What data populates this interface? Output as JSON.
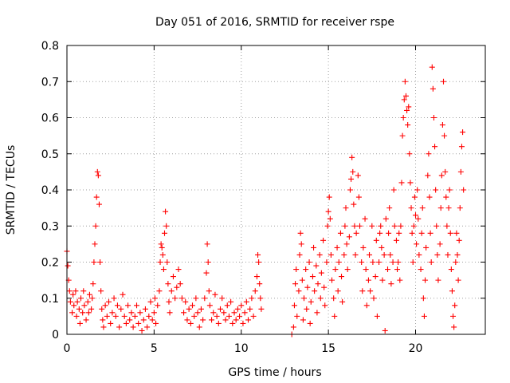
{
  "chart_data": {
    "type": "scatter",
    "title": "Day 051 of 2016, SRMTID for receiver rspe",
    "xlabel": "GPS time / hours",
    "ylabel": "SRMTID / TECUs",
    "xlim": [
      0,
      24
    ],
    "ylim": [
      0,
      0.8
    ],
    "xticks": [
      0,
      5,
      10,
      15,
      20
    ],
    "yticks": [
      0,
      0.1,
      0.2,
      0.3,
      0.4,
      0.5,
      0.6,
      0.7,
      0.8
    ],
    "xtick_labels": [
      "0",
      "5",
      "10",
      "15",
      "20"
    ],
    "ytick_labels": [
      "0",
      "0.1",
      "0.2",
      "0.3",
      "0.4",
      "0.5",
      "0.6",
      "0.7",
      "0.8"
    ],
    "grid": true,
    "marker": "+",
    "color": "#ff0000",
    "series": [
      {
        "name": "rspe",
        "points": [
          [
            0.0,
            0.23
          ],
          [
            0.05,
            0.19
          ],
          [
            0.1,
            0.15
          ],
          [
            0.15,
            0.12
          ],
          [
            0.2,
            0.09
          ],
          [
            0.3,
            0.06
          ],
          [
            0.35,
            0.11
          ],
          [
            0.4,
            0.08
          ],
          [
            0.5,
            0.12
          ],
          [
            0.55,
            0.05
          ],
          [
            0.6,
            0.09
          ],
          [
            0.7,
            0.07
          ],
          [
            0.75,
            0.03
          ],
          [
            0.8,
            0.1
          ],
          [
            0.9,
            0.06
          ],
          [
            0.95,
            0.12
          ],
          [
            1.0,
            0.08
          ],
          [
            1.1,
            0.04
          ],
          [
            1.2,
            0.09
          ],
          [
            1.25,
            0.06
          ],
          [
            1.3,
            0.11
          ],
          [
            1.4,
            0.07
          ],
          [
            1.45,
            0.1
          ],
          [
            1.5,
            0.14
          ],
          [
            1.55,
            0.2
          ],
          [
            1.6,
            0.25
          ],
          [
            1.65,
            0.3
          ],
          [
            1.7,
            0.38
          ],
          [
            1.75,
            0.45
          ],
          [
            1.8,
            0.44
          ],
          [
            1.85,
            0.36
          ],
          [
            1.9,
            0.2
          ],
          [
            1.95,
            0.12
          ],
          [
            2.0,
            0.07
          ],
          [
            2.05,
            0.04
          ],
          [
            2.1,
            0.02
          ],
          [
            2.2,
            0.08
          ],
          [
            2.3,
            0.05
          ],
          [
            2.4,
            0.09
          ],
          [
            2.5,
            0.03
          ],
          [
            2.6,
            0.06
          ],
          [
            2.7,
            0.1
          ],
          [
            2.8,
            0.05
          ],
          [
            2.9,
            0.08
          ],
          [
            3.0,
            0.02
          ],
          [
            3.1,
            0.07
          ],
          [
            3.2,
            0.11
          ],
          [
            3.3,
            0.05
          ],
          [
            3.4,
            0.03
          ],
          [
            3.5,
            0.08
          ],
          [
            3.6,
            0.04
          ],
          [
            3.7,
            0.06
          ],
          [
            3.8,
            0.02
          ],
          [
            3.9,
            0.05
          ],
          [
            4.0,
            0.08
          ],
          [
            4.1,
            0.03
          ],
          [
            4.2,
            0.06
          ],
          [
            4.3,
            0.01
          ],
          [
            4.4,
            0.04
          ],
          [
            4.5,
            0.07
          ],
          [
            4.6,
            0.02
          ],
          [
            4.7,
            0.05
          ],
          [
            4.8,
            0.09
          ],
          [
            4.9,
            0.04
          ],
          [
            5.0,
            0.06
          ],
          [
            5.05,
            0.1
          ],
          [
            5.1,
            0.03
          ],
          [
            5.2,
            0.08
          ],
          [
            5.3,
            0.12
          ],
          [
            5.35,
            0.2
          ],
          [
            5.4,
            0.25
          ],
          [
            5.45,
            0.24
          ],
          [
            5.5,
            0.22
          ],
          [
            5.55,
            0.18
          ],
          [
            5.6,
            0.28
          ],
          [
            5.65,
            0.34
          ],
          [
            5.7,
            0.3
          ],
          [
            5.75,
            0.2
          ],
          [
            5.8,
            0.14
          ],
          [
            5.85,
            0.09
          ],
          [
            5.9,
            0.06
          ],
          [
            6.0,
            0.12
          ],
          [
            6.1,
            0.16
          ],
          [
            6.2,
            0.1
          ],
          [
            6.3,
            0.13
          ],
          [
            6.4,
            0.18
          ],
          [
            6.5,
            0.14
          ],
          [
            6.6,
            0.1
          ],
          [
            6.7,
            0.06
          ],
          [
            6.8,
            0.09
          ],
          [
            6.9,
            0.04
          ],
          [
            7.0,
            0.07
          ],
          [
            7.1,
            0.03
          ],
          [
            7.2,
            0.08
          ],
          [
            7.3,
            0.05
          ],
          [
            7.4,
            0.1
          ],
          [
            7.5,
            0.06
          ],
          [
            7.6,
            0.02
          ],
          [
            7.7,
            0.07
          ],
          [
            7.8,
            0.04
          ],
          [
            7.9,
            0.1
          ],
          [
            8.0,
            0.17
          ],
          [
            8.05,
            0.25
          ],
          [
            8.1,
            0.2
          ],
          [
            8.15,
            0.12
          ],
          [
            8.2,
            0.08
          ],
          [
            8.3,
            0.04
          ],
          [
            8.4,
            0.06
          ],
          [
            8.5,
            0.11
          ],
          [
            8.6,
            0.05
          ],
          [
            8.7,
            0.03
          ],
          [
            8.8,
            0.07
          ],
          [
            8.9,
            0.1
          ],
          [
            9.0,
            0.06
          ],
          [
            9.1,
            0.04
          ],
          [
            9.2,
            0.08
          ],
          [
            9.3,
            0.05
          ],
          [
            9.4,
            0.09
          ],
          [
            9.5,
            0.03
          ],
          [
            9.6,
            0.06
          ],
          [
            9.7,
            0.04
          ],
          [
            9.8,
            0.07
          ],
          [
            9.9,
            0.05
          ],
          [
            10.0,
            0.08
          ],
          [
            10.1,
            0.03
          ],
          [
            10.2,
            0.06
          ],
          [
            10.3,
            0.09
          ],
          [
            10.4,
            0.04
          ],
          [
            10.5,
            0.07
          ],
          [
            10.6,
            0.1
          ],
          [
            10.7,
            0.05
          ],
          [
            10.8,
            0.12
          ],
          [
            10.9,
            0.16
          ],
          [
            10.95,
            0.22
          ],
          [
            11.0,
            0.2
          ],
          [
            11.05,
            0.14
          ],
          [
            11.1,
            0.1
          ],
          [
            11.15,
            0.07
          ],
          [
            12.9,
            0.0
          ],
          [
            13.0,
            0.02
          ],
          [
            13.05,
            0.08
          ],
          [
            13.1,
            0.14
          ],
          [
            13.15,
            0.18
          ],
          [
            13.2,
            0.05
          ],
          [
            13.3,
            0.12
          ],
          [
            13.35,
            0.22
          ],
          [
            13.4,
            0.28
          ],
          [
            13.45,
            0.25
          ],
          [
            13.5,
            0.15
          ],
          [
            13.55,
            0.04
          ],
          [
            13.6,
            0.1
          ],
          [
            13.7,
            0.18
          ],
          [
            13.75,
            0.07
          ],
          [
            13.8,
            0.13
          ],
          [
            13.9,
            0.2
          ],
          [
            13.95,
            0.03
          ],
          [
            14.0,
            0.09
          ],
          [
            14.1,
            0.16
          ],
          [
            14.15,
            0.24
          ],
          [
            14.2,
            0.12
          ],
          [
            14.3,
            0.19
          ],
          [
            14.35,
            0.06
          ],
          [
            14.4,
            0.14
          ],
          [
            14.5,
            0.22
          ],
          [
            14.55,
            0.1
          ],
          [
            14.6,
            0.17
          ],
          [
            14.7,
            0.26
          ],
          [
            14.75,
            0.13
          ],
          [
            14.8,
            0.08
          ],
          [
            14.9,
            0.2
          ],
          [
            14.95,
            0.3
          ],
          [
            15.0,
            0.34
          ],
          [
            15.05,
            0.38
          ],
          [
            15.1,
            0.32
          ],
          [
            15.15,
            0.22
          ],
          [
            15.2,
            0.15
          ],
          [
            15.3,
            0.1
          ],
          [
            15.35,
            0.05
          ],
          [
            15.4,
            0.18
          ],
          [
            15.5,
            0.24
          ],
          [
            15.55,
            0.12
          ],
          [
            15.6,
            0.2
          ],
          [
            15.7,
            0.28
          ],
          [
            15.75,
            0.16
          ],
          [
            15.8,
            0.09
          ],
          [
            15.9,
            0.22
          ],
          [
            15.95,
            0.3
          ],
          [
            16.0,
            0.35
          ],
          [
            16.05,
            0.25
          ],
          [
            16.1,
            0.18
          ],
          [
            16.2,
            0.27
          ],
          [
            16.25,
            0.4
          ],
          [
            16.3,
            0.43
          ],
          [
            16.35,
            0.49
          ],
          [
            16.4,
            0.45
          ],
          [
            16.45,
            0.36
          ],
          [
            16.5,
            0.3
          ],
          [
            16.55,
            0.22
          ],
          [
            16.6,
            0.28
          ],
          [
            16.7,
            0.44
          ],
          [
            16.75,
            0.38
          ],
          [
            16.8,
            0.3
          ],
          [
            16.9,
            0.2
          ],
          [
            16.95,
            0.12
          ],
          [
            17.0,
            0.24
          ],
          [
            17.1,
            0.32
          ],
          [
            17.15,
            0.18
          ],
          [
            17.2,
            0.08
          ],
          [
            17.3,
            0.15
          ],
          [
            17.35,
            0.22
          ],
          [
            17.4,
            0.12
          ],
          [
            17.5,
            0.3
          ],
          [
            17.55,
            0.2
          ],
          [
            17.6,
            0.1
          ],
          [
            17.7,
            0.16
          ],
          [
            17.75,
            0.26
          ],
          [
            17.8,
            0.05
          ],
          [
            17.9,
            0.2
          ],
          [
            17.95,
            0.28
          ],
          [
            18.0,
            0.3
          ],
          [
            18.05,
            0.24
          ],
          [
            18.1,
            0.15
          ],
          [
            18.2,
            0.22
          ],
          [
            18.25,
            0.01
          ],
          [
            18.3,
            0.32
          ],
          [
            18.4,
            0.18
          ],
          [
            18.45,
            0.28
          ],
          [
            18.5,
            0.35
          ],
          [
            18.55,
            0.22
          ],
          [
            18.6,
            0.14
          ],
          [
            18.7,
            0.2
          ],
          [
            18.75,
            0.4
          ],
          [
            18.8,
            0.3
          ],
          [
            18.9,
            0.26
          ],
          [
            18.95,
            0.18
          ],
          [
            19.0,
            0.2
          ],
          [
            19.05,
            0.28
          ],
          [
            19.1,
            0.15
          ],
          [
            19.15,
            0.3
          ],
          [
            19.2,
            0.42
          ],
          [
            19.25,
            0.55
          ],
          [
            19.3,
            0.6
          ],
          [
            19.35,
            0.65
          ],
          [
            19.4,
            0.7
          ],
          [
            19.45,
            0.66
          ],
          [
            19.5,
            0.62
          ],
          [
            19.55,
            0.58
          ],
          [
            19.6,
            0.63
          ],
          [
            19.65,
            0.5
          ],
          [
            19.7,
            0.42
          ],
          [
            19.75,
            0.35
          ],
          [
            19.8,
            0.28
          ],
          [
            19.85,
            0.2
          ],
          [
            19.9,
            0.3
          ],
          [
            19.95,
            0.38
          ],
          [
            20.0,
            0.33
          ],
          [
            20.05,
            0.25
          ],
          [
            20.1,
            0.4
          ],
          [
            20.15,
            0.32
          ],
          [
            20.2,
            0.22
          ],
          [
            20.3,
            0.18
          ],
          [
            20.35,
            0.28
          ],
          [
            20.4,
            0.35
          ],
          [
            20.45,
            0.1
          ],
          [
            20.5,
            0.05
          ],
          [
            20.55,
            0.15
          ],
          [
            20.6,
            0.24
          ],
          [
            20.7,
            0.44
          ],
          [
            20.75,
            0.5
          ],
          [
            20.8,
            0.38
          ],
          [
            20.85,
            0.28
          ],
          [
            20.9,
            0.2
          ],
          [
            20.95,
            0.74
          ],
          [
            21.0,
            0.68
          ],
          [
            21.05,
            0.6
          ],
          [
            21.1,
            0.52
          ],
          [
            21.15,
            0.4
          ],
          [
            21.2,
            0.3
          ],
          [
            21.25,
            0.22
          ],
          [
            21.3,
            0.15
          ],
          [
            21.4,
            0.25
          ],
          [
            21.45,
            0.35
          ],
          [
            21.5,
            0.44
          ],
          [
            21.55,
            0.58
          ],
          [
            21.6,
            0.7
          ],
          [
            21.65,
            0.55
          ],
          [
            21.7,
            0.45
          ],
          [
            21.75,
            0.38
          ],
          [
            21.8,
            0.3
          ],
          [
            21.85,
            0.22
          ],
          [
            21.9,
            0.35
          ],
          [
            21.95,
            0.4
          ],
          [
            22.0,
            0.28
          ],
          [
            22.05,
            0.18
          ],
          [
            22.1,
            0.12
          ],
          [
            22.15,
            0.05
          ],
          [
            22.2,
            0.02
          ],
          [
            22.25,
            0.08
          ],
          [
            22.3,
            0.2
          ],
          [
            22.35,
            0.28
          ],
          [
            22.4,
            0.22
          ],
          [
            22.45,
            0.15
          ],
          [
            22.5,
            0.26
          ],
          [
            22.55,
            0.35
          ],
          [
            22.6,
            0.45
          ],
          [
            22.65,
            0.52
          ],
          [
            22.7,
            0.56
          ],
          [
            22.75,
            0.4
          ]
        ]
      }
    ]
  }
}
